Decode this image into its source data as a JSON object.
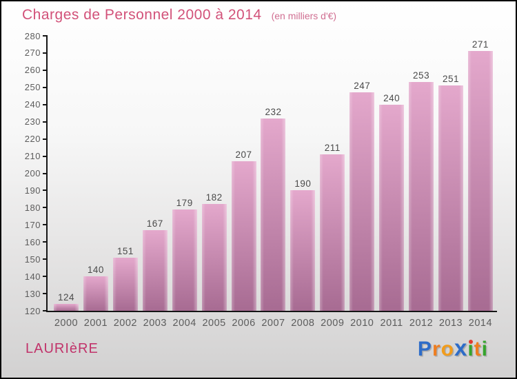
{
  "chart_data": {
    "type": "bar",
    "title": "Charges de Personnel 2000 à 2014",
    "subtitle": "(en milliers d'€)",
    "categories": [
      "2000",
      "2001",
      "2002",
      "2003",
      "2004",
      "2005",
      "2006",
      "2007",
      "2008",
      "2009",
      "2010",
      "2011",
      "2012",
      "2013",
      "2014"
    ],
    "values": [
      124,
      140,
      151,
      167,
      179,
      182,
      207,
      232,
      190,
      211,
      247,
      240,
      253,
      251,
      271
    ],
    "xlabel": "",
    "ylabel": "",
    "ylim": [
      120,
      280
    ],
    "ytick_step": 10,
    "grid": false,
    "legend": false,
    "colors": {
      "title": "#d25179",
      "subtitle": "#d06e91",
      "bar_gradient_top": "#e4a8cc",
      "bar_gradient_bottom": "#a76b92",
      "value_labels": "#4a4a4a",
      "axis_labels": "#5c5c5c",
      "axis_line": "#151515"
    }
  },
  "footer": {
    "place_name": "LAURIèRE",
    "place_color": "#c1336a",
    "logo": {
      "text": "Proxiti",
      "letters": [
        {
          "ch": "P",
          "color": "#2e6cc8"
        },
        {
          "ch": "r",
          "color": "#ee7d20"
        },
        {
          "ch": "o",
          "color": "#f29c1b"
        },
        {
          "ch": "x",
          "color": "#2e6cc8",
          "bold": true
        },
        {
          "ch": "i",
          "color": "#35a42c",
          "dot_color": "#e03a2f"
        },
        {
          "ch": "t",
          "color": "#ee7d20"
        },
        {
          "ch": "i",
          "color": "#35a42c"
        }
      ]
    }
  }
}
